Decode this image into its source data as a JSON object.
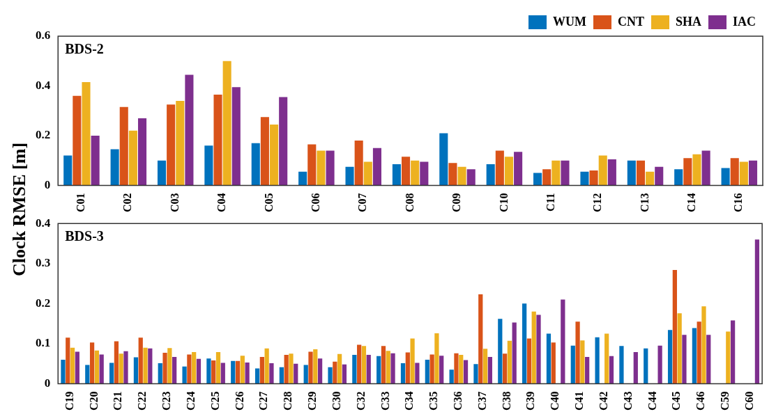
{
  "chart_data": [
    {
      "type": "bar",
      "title": "BDS-2",
      "ylabel": "Clock RMSE [m]",
      "categories": [
        "C01",
        "C02",
        "C03",
        "C04",
        "C05",
        "C06",
        "C07",
        "C08",
        "C09",
        "C10",
        "C11",
        "C12",
        "C13",
        "C14",
        "C16"
      ],
      "ylim": [
        0,
        0.6
      ],
      "yticks": [
        0,
        0.2,
        0.4,
        0.6
      ],
      "grid": false,
      "legend": "top right",
      "series": [
        {
          "name": "WUM",
          "color": "#0072bd",
          "values": [
            0.12,
            0.145,
            0.1,
            0.16,
            0.17,
            0.055,
            0.075,
            0.085,
            0.21,
            0.085,
            0.05,
            0.055,
            0.1,
            0.065,
            0.07
          ]
        },
        {
          "name": "CNT",
          "color": "#d95319",
          "values": [
            0.36,
            0.315,
            0.325,
            0.365,
            0.275,
            0.165,
            0.18,
            0.115,
            0.09,
            0.14,
            0.065,
            0.06,
            0.1,
            0.11,
            0.11
          ]
        },
        {
          "name": "SHA",
          "color": "#edb120",
          "values": [
            0.415,
            0.22,
            0.34,
            0.5,
            0.245,
            0.14,
            0.095,
            0.1,
            0.075,
            0.115,
            0.1,
            0.12,
            0.055,
            0.125,
            0.095
          ]
        },
        {
          "name": "IAC",
          "color": "#7e2f8e",
          "values": [
            0.2,
            0.27,
            0.445,
            0.395,
            0.355,
            0.14,
            0.15,
            0.095,
            0.065,
            0.135,
            0.1,
            0.105,
            0.075,
            0.14,
            0.1
          ]
        }
      ]
    },
    {
      "type": "bar",
      "title": "BDS-3",
      "categories": [
        "C19",
        "C20",
        "C21",
        "C22",
        "C23",
        "C24",
        "C25",
        "C26",
        "C27",
        "C28",
        "C29",
        "C30",
        "C32",
        "C33",
        "C34",
        "C35",
        "C36",
        "C37",
        "C38",
        "C39",
        "C40",
        "C41",
        "C42",
        "C43",
        "C44",
        "C45",
        "C46",
        "C59",
        "C60"
      ],
      "ylim": [
        0,
        0.4
      ],
      "yticks": [
        0,
        0.1,
        0.2,
        0.3,
        0.4
      ],
      "grid": false,
      "series": [
        {
          "color": "#0072bd",
          "values": [
            0.06,
            0.047,
            0.052,
            0.066,
            0.051,
            0.043,
            0.063,
            0.057,
            0.038,
            0.041,
            0.047,
            0.041,
            0.072,
            0.069,
            0.051,
            0.06,
            0.035,
            0.049,
            0.162,
            0.2,
            0.125,
            0.095,
            0.116,
            0.094,
            0.088,
            0.134,
            0.139,
            null,
            null
          ]
        },
        {
          "color": "#d95319",
          "values": [
            0.115,
            0.103,
            0.106,
            0.115,
            0.077,
            0.073,
            0.058,
            0.057,
            0.067,
            0.072,
            0.08,
            0.055,
            0.097,
            0.094,
            0.078,
            0.073,
            0.076,
            0.223,
            0.075,
            0.113,
            0.103,
            0.155,
            null,
            null,
            null,
            0.284,
            0.155,
            null,
            null
          ]
        },
        {
          "color": "#edb120",
          "values": [
            0.09,
            0.083,
            0.075,
            0.09,
            0.089,
            0.079,
            0.079,
            0.07,
            0.088,
            0.075,
            0.086,
            0.074,
            0.094,
            0.082,
            0.113,
            0.126,
            0.072,
            0.087,
            0.107,
            0.18,
            null,
            0.108,
            0.125,
            null,
            null,
            0.176,
            0.193,
            0.13,
            null
          ]
        },
        {
          "color": "#7e2f8e",
          "values": [
            0.08,
            0.073,
            0.081,
            0.088,
            0.067,
            0.062,
            0.052,
            0.053,
            0.051,
            0.05,
            0.063,
            0.048,
            0.072,
            0.076,
            0.052,
            0.07,
            0.059,
            0.067,
            0.153,
            0.172,
            0.21,
            0.067,
            0.069,
            0.079,
            0.095,
            0.122,
            0.122,
            0.158,
            0.36
          ]
        }
      ]
    }
  ]
}
